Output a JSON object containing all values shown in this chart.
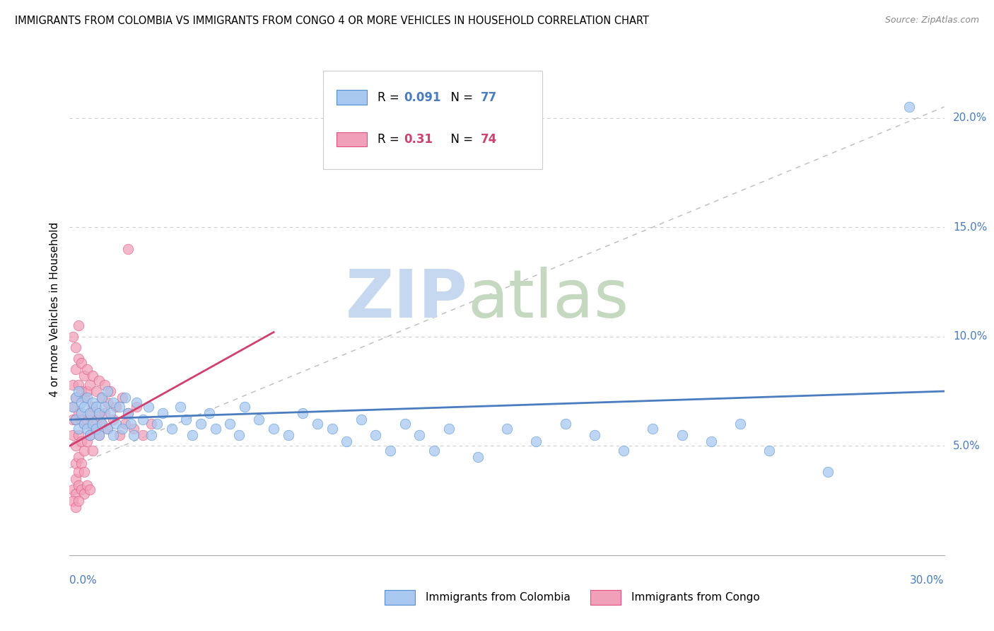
{
  "title": "IMMIGRANTS FROM COLOMBIA VS IMMIGRANTS FROM CONGO 4 OR MORE VEHICLES IN HOUSEHOLD CORRELATION CHART",
  "source": "Source: ZipAtlas.com",
  "ylabel": "4 or more Vehicles in Household",
  "xlim": [
    0.0,
    0.3
  ],
  "ylim": [
    0.0,
    0.225
  ],
  "yticks": [
    0.05,
    0.1,
    0.15,
    0.2
  ],
  "ytick_labels": [
    "5.0%",
    "10.0%",
    "15.0%",
    "20.0%"
  ],
  "colombia_color": "#A8C8F0",
  "congo_color": "#F0A0B8",
  "colombia_edge_color": "#5090D0",
  "congo_edge_color": "#E05080",
  "colombia_line_color": "#4A7CC0",
  "congo_line_color": "#D04070",
  "colombia_R": 0.091,
  "colombia_N": 77,
  "congo_R": 0.31,
  "congo_N": 74,
  "watermark_zip_color": "#C5D8F0",
  "watermark_atlas_color": "#C5D8C0",
  "grid_color": "#CCCCCC",
  "background_color": "#FFFFFF",
  "colombia_scatter": [
    [
      0.001,
      0.068
    ],
    [
      0.002,
      0.062
    ],
    [
      0.002,
      0.072
    ],
    [
      0.003,
      0.075
    ],
    [
      0.003,
      0.058
    ],
    [
      0.004,
      0.065
    ],
    [
      0.004,
      0.07
    ],
    [
      0.005,
      0.06
    ],
    [
      0.005,
      0.068
    ],
    [
      0.006,
      0.058
    ],
    [
      0.006,
      0.072
    ],
    [
      0.007,
      0.065
    ],
    [
      0.007,
      0.055
    ],
    [
      0.008,
      0.07
    ],
    [
      0.008,
      0.06
    ],
    [
      0.009,
      0.068
    ],
    [
      0.009,
      0.058
    ],
    [
      0.01,
      0.065
    ],
    [
      0.01,
      0.055
    ],
    [
      0.011,
      0.072
    ],
    [
      0.011,
      0.06
    ],
    [
      0.012,
      0.068
    ],
    [
      0.013,
      0.058
    ],
    [
      0.013,
      0.075
    ],
    [
      0.014,
      0.065
    ],
    [
      0.015,
      0.055
    ],
    [
      0.015,
      0.07
    ],
    [
      0.016,
      0.06
    ],
    [
      0.017,
      0.068
    ],
    [
      0.018,
      0.058
    ],
    [
      0.019,
      0.072
    ],
    [
      0.02,
      0.065
    ],
    [
      0.021,
      0.06
    ],
    [
      0.022,
      0.055
    ],
    [
      0.023,
      0.07
    ],
    [
      0.025,
      0.062
    ],
    [
      0.027,
      0.068
    ],
    [
      0.028,
      0.055
    ],
    [
      0.03,
      0.06
    ],
    [
      0.032,
      0.065
    ],
    [
      0.035,
      0.058
    ],
    [
      0.038,
      0.068
    ],
    [
      0.04,
      0.062
    ],
    [
      0.042,
      0.055
    ],
    [
      0.045,
      0.06
    ],
    [
      0.048,
      0.065
    ],
    [
      0.05,
      0.058
    ],
    [
      0.055,
      0.06
    ],
    [
      0.058,
      0.055
    ],
    [
      0.06,
      0.068
    ],
    [
      0.065,
      0.062
    ],
    [
      0.07,
      0.058
    ],
    [
      0.075,
      0.055
    ],
    [
      0.08,
      0.065
    ],
    [
      0.085,
      0.06
    ],
    [
      0.09,
      0.058
    ],
    [
      0.095,
      0.052
    ],
    [
      0.1,
      0.062
    ],
    [
      0.105,
      0.055
    ],
    [
      0.11,
      0.048
    ],
    [
      0.115,
      0.06
    ],
    [
      0.12,
      0.055
    ],
    [
      0.125,
      0.048
    ],
    [
      0.13,
      0.058
    ],
    [
      0.14,
      0.045
    ],
    [
      0.15,
      0.058
    ],
    [
      0.16,
      0.052
    ],
    [
      0.17,
      0.06
    ],
    [
      0.18,
      0.055
    ],
    [
      0.19,
      0.048
    ],
    [
      0.2,
      0.058
    ],
    [
      0.21,
      0.055
    ],
    [
      0.22,
      0.052
    ],
    [
      0.23,
      0.06
    ],
    [
      0.24,
      0.048
    ],
    [
      0.26,
      0.038
    ],
    [
      0.288,
      0.205
    ]
  ],
  "congo_scatter": [
    [
      0.001,
      0.068
    ],
    [
      0.001,
      0.062
    ],
    [
      0.001,
      0.078
    ],
    [
      0.001,
      0.055
    ],
    [
      0.002,
      0.085
    ],
    [
      0.002,
      0.072
    ],
    [
      0.002,
      0.062
    ],
    [
      0.002,
      0.05
    ],
    [
      0.002,
      0.042
    ],
    [
      0.002,
      0.035
    ],
    [
      0.003,
      0.09
    ],
    [
      0.003,
      0.078
    ],
    [
      0.003,
      0.065
    ],
    [
      0.003,
      0.055
    ],
    [
      0.003,
      0.045
    ],
    [
      0.003,
      0.038
    ],
    [
      0.004,
      0.088
    ],
    [
      0.004,
      0.075
    ],
    [
      0.004,
      0.062
    ],
    [
      0.004,
      0.052
    ],
    [
      0.004,
      0.042
    ],
    [
      0.005,
      0.082
    ],
    [
      0.005,
      0.072
    ],
    [
      0.005,
      0.06
    ],
    [
      0.005,
      0.048
    ],
    [
      0.005,
      0.038
    ],
    [
      0.006,
      0.085
    ],
    [
      0.006,
      0.075
    ],
    [
      0.006,
      0.062
    ],
    [
      0.006,
      0.052
    ],
    [
      0.007,
      0.078
    ],
    [
      0.007,
      0.065
    ],
    [
      0.007,
      0.055
    ],
    [
      0.008,
      0.082
    ],
    [
      0.008,
      0.068
    ],
    [
      0.008,
      0.058
    ],
    [
      0.008,
      0.048
    ],
    [
      0.009,
      0.075
    ],
    [
      0.009,
      0.062
    ],
    [
      0.01,
      0.08
    ],
    [
      0.01,
      0.065
    ],
    [
      0.01,
      0.055
    ],
    [
      0.011,
      0.072
    ],
    [
      0.011,
      0.06
    ],
    [
      0.012,
      0.078
    ],
    [
      0.012,
      0.065
    ],
    [
      0.013,
      0.07
    ],
    [
      0.013,
      0.058
    ],
    [
      0.014,
      0.075
    ],
    [
      0.015,
      0.062
    ],
    [
      0.016,
      0.068
    ],
    [
      0.017,
      0.055
    ],
    [
      0.018,
      0.072
    ],
    [
      0.019,
      0.06
    ],
    [
      0.02,
      0.065
    ],
    [
      0.022,
      0.058
    ],
    [
      0.023,
      0.068
    ],
    [
      0.025,
      0.055
    ],
    [
      0.028,
      0.06
    ],
    [
      0.001,
      0.1
    ],
    [
      0.002,
      0.095
    ],
    [
      0.003,
      0.105
    ],
    [
      0.02,
      0.14
    ],
    [
      0.001,
      0.03
    ],
    [
      0.002,
      0.028
    ],
    [
      0.003,
      0.032
    ],
    [
      0.004,
      0.03
    ],
    [
      0.005,
      0.028
    ],
    [
      0.006,
      0.032
    ],
    [
      0.007,
      0.03
    ],
    [
      0.001,
      0.025
    ],
    [
      0.002,
      0.022
    ],
    [
      0.003,
      0.025
    ]
  ]
}
